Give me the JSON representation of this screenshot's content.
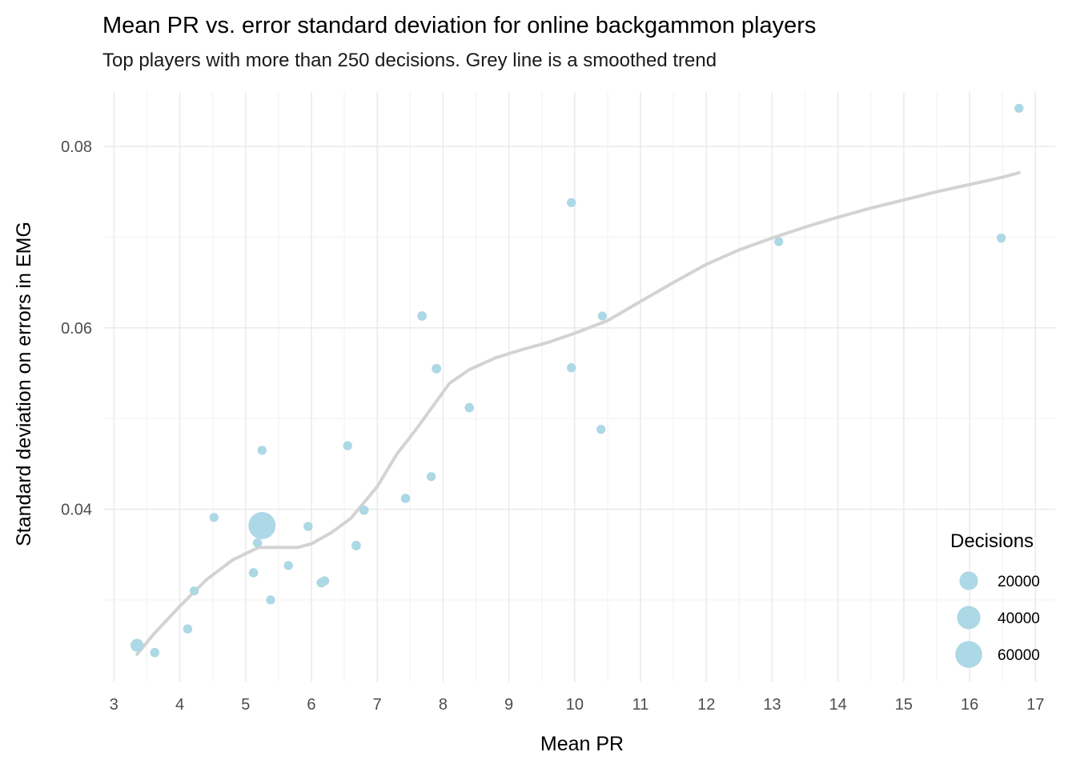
{
  "chart_data": {
    "type": "scatter",
    "title": "Mean PR vs. error standard deviation for online backgammon players",
    "subtitle": "Top players with more than 250 decisions. Grey line is a smoothed trend",
    "xlabel": "Mean PR",
    "ylabel": "Standard deviation on errors in EMG",
    "xlim": [
      2.85,
      17.3
    ],
    "ylim": [
      0.021,
      0.086
    ],
    "x_ticks": [
      "3",
      "4",
      "5",
      "6",
      "7",
      "8",
      "9",
      "10",
      "11",
      "12",
      "13",
      "14",
      "15",
      "16",
      "17"
    ],
    "y_ticks": [
      "0.04",
      "0.06",
      "0.08"
    ],
    "grid": true,
    "point_color": "#add8e6",
    "trend_color": "#d3d3d3",
    "series": [
      {
        "points": [
          {
            "x": 3.35,
            "y": 0.025,
            "decisions": 5200
          },
          {
            "x": 3.62,
            "y": 0.0242,
            "decisions": 700
          },
          {
            "x": 4.12,
            "y": 0.0268,
            "decisions": 600
          },
          {
            "x": 4.22,
            "y": 0.031,
            "decisions": 550
          },
          {
            "x": 4.52,
            "y": 0.0391,
            "decisions": 550
          },
          {
            "x": 5.12,
            "y": 0.033,
            "decisions": 700
          },
          {
            "x": 5.18,
            "y": 0.0363,
            "decisions": 600
          },
          {
            "x": 5.25,
            "y": 0.0382,
            "decisions": 62000
          },
          {
            "x": 5.25,
            "y": 0.0465,
            "decisions": 550
          },
          {
            "x": 5.38,
            "y": 0.03,
            "decisions": 550
          },
          {
            "x": 5.65,
            "y": 0.0338,
            "decisions": 550
          },
          {
            "x": 5.95,
            "y": 0.0381,
            "decisions": 600
          },
          {
            "x": 6.15,
            "y": 0.0319,
            "decisions": 750
          },
          {
            "x": 6.2,
            "y": 0.0321,
            "decisions": 650
          },
          {
            "x": 6.55,
            "y": 0.047,
            "decisions": 550
          },
          {
            "x": 6.68,
            "y": 0.036,
            "decisions": 800
          },
          {
            "x": 6.8,
            "y": 0.0399,
            "decisions": 700
          },
          {
            "x": 7.43,
            "y": 0.0412,
            "decisions": 700
          },
          {
            "x": 7.68,
            "y": 0.0613,
            "decisions": 800
          },
          {
            "x": 7.82,
            "y": 0.0436,
            "decisions": 550
          },
          {
            "x": 7.9,
            "y": 0.0555,
            "decisions": 800
          },
          {
            "x": 8.4,
            "y": 0.0512,
            "decisions": 700
          },
          {
            "x": 9.95,
            "y": 0.0738,
            "decisions": 550
          },
          {
            "x": 9.95,
            "y": 0.0556,
            "decisions": 550
          },
          {
            "x": 10.4,
            "y": 0.0488,
            "decisions": 550
          },
          {
            "x": 10.42,
            "y": 0.0613,
            "decisions": 500
          },
          {
            "x": 13.1,
            "y": 0.0695,
            "decisions": 500
          },
          {
            "x": 16.48,
            "y": 0.0699,
            "decisions": 550
          },
          {
            "x": 16.75,
            "y": 0.0842,
            "decisions": 550
          }
        ]
      }
    ],
    "trend": {
      "x": [
        3.35,
        3.6,
        4.0,
        4.4,
        4.8,
        5.2,
        5.5,
        5.8,
        6.0,
        6.3,
        6.6,
        7.0,
        7.3,
        7.6,
        7.9,
        8.1,
        8.4,
        8.8,
        9.2,
        9.6,
        10.0,
        10.5,
        11.0,
        11.5,
        12.0,
        12.5,
        13.0,
        13.5,
        14.0,
        14.5,
        15.0,
        15.5,
        16.0,
        16.5,
        16.75
      ],
      "y": [
        0.024,
        0.0262,
        0.0293,
        0.0322,
        0.0344,
        0.0358,
        0.0358,
        0.0358,
        0.0362,
        0.0374,
        0.039,
        0.0425,
        0.0461,
        0.0489,
        0.0519,
        0.0539,
        0.0554,
        0.0567,
        0.0576,
        0.0584,
        0.0594,
        0.0608,
        0.0629,
        0.065,
        0.067,
        0.0686,
        0.0699,
        0.0711,
        0.0722,
        0.0732,
        0.0741,
        0.075,
        0.0758,
        0.0766,
        0.0771
      ]
    },
    "legend": {
      "title": "Decisions",
      "position": "bottom-right",
      "entries": [
        {
          "label": "20000",
          "value": 20000
        },
        {
          "label": "40000",
          "value": 40000
        },
        {
          "label": "60000",
          "value": 60000
        }
      ]
    }
  }
}
